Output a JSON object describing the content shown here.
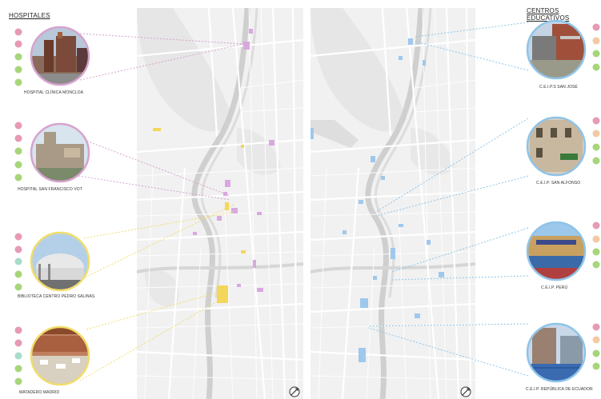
{
  "left_section": {
    "title": "HOSPITALES"
  },
  "right_section": {
    "title": "CENTROS EDUCATIVOS"
  },
  "left_items": [
    {
      "caption": "HOSPITAL CLÍNICA MONCLOA",
      "ring_color": "#d6a3cf",
      "icons": [
        "#e79ab4",
        "#e79ab4",
        "#a7d67a",
        "#a7d67a",
        "#a7d67a"
      ]
    },
    {
      "caption": "HOSPITAL SAN FRANCISCO VOT",
      "ring_color": "#d6a3cf",
      "icons": [
        "#e79ab4",
        "#e79ab4",
        "#a7d67a",
        "#a7d67a",
        "#a7d67a"
      ]
    },
    {
      "caption": "BIBLIOTECA CENTRO PEDRO SALINAS",
      "ring_color": "#f1dd6b",
      "icons": [
        "#e79ab4",
        "#e79ab4",
        "#a8dcc9",
        "#a7d67a",
        "#a7d67a"
      ]
    },
    {
      "caption": "MATADERO MADRID",
      "ring_color": "#f1dd6b",
      "icons": [
        "#e79ab4",
        "#e79ab4",
        "#a8dcc9",
        "#a7d67a",
        "#a7d67a"
      ]
    }
  ],
  "right_items": [
    {
      "caption": "C.E.I.P.S SAN JOSÉ",
      "ring_color": "#8fc4e8",
      "icons": [
        "#e79ab4",
        "#f3c9a5",
        "#a7d67a",
        "#a7d67a"
      ]
    },
    {
      "caption": "C.E.I.P. SAN ALFONSO",
      "ring_color": "#8fc4e8",
      "icons": [
        "#e79ab4",
        "#f3c9a5",
        "#a7d67a",
        "#a7d67a"
      ]
    },
    {
      "caption": "C.E.I.P. PERÚ",
      "ring_color": "#8fc4e8",
      "icons": [
        "#e79ab4",
        "#f3c9a5",
        "#a7d67a",
        "#a7d67a"
      ]
    },
    {
      "caption": "C.E.I.P. REPÚBLICA DE ECUADOR",
      "ring_color": "#8fc4e8",
      "icons": [
        "#e79ab4",
        "#f3c9a5",
        "#a7d67a",
        "#a7d67a"
      ]
    }
  ],
  "colors": {
    "map_bg": "#f1f1f1",
    "road": "#ffffff",
    "river": "#d2d2d2",
    "hospital": "#d9a8e0",
    "culture": "#f3d75a",
    "education": "#9fc8ee"
  }
}
